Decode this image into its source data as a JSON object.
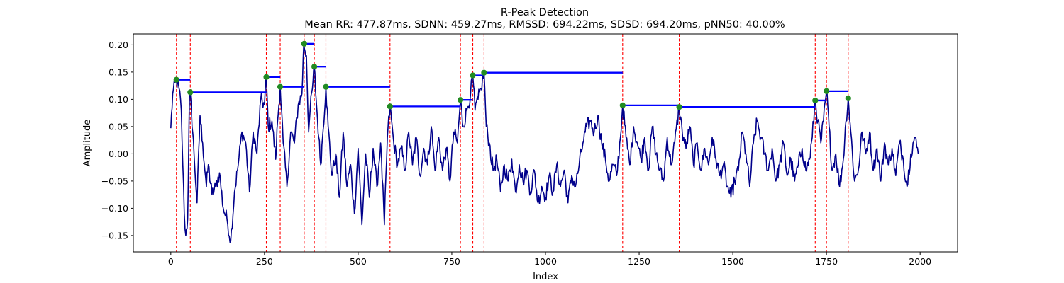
{
  "chart_data": {
    "type": "line",
    "title": "R-Peak Detection",
    "subtitle": "Mean RR: 477.87ms, SDNN: 459.27ms, RMSSD: 694.22ms, SDSD: 694.20ms, pNN50: 40.00%",
    "xlabel": "Index",
    "ylabel": "Amplitude",
    "xlim": [
      -100,
      2100
    ],
    "ylim": [
      -0.18,
      0.22
    ],
    "xticks": [
      0,
      250,
      500,
      750,
      1000,
      1250,
      1500,
      1750,
      2000
    ],
    "xtick_labels": [
      "0",
      "250",
      "500",
      "750",
      "1000",
      "1250",
      "1500",
      "1750",
      "2000"
    ],
    "yticks": [
      -0.15,
      -0.1,
      -0.05,
      0.0,
      0.05,
      0.1,
      0.15,
      0.2
    ],
    "ytick_labels": [
      "−0.15",
      "−0.10",
      "−0.05",
      "0.00",
      "0.05",
      "0.10",
      "0.15",
      "0.20"
    ],
    "grid": false,
    "signal_color": "#00008b",
    "peak_marker_color": "#228b22",
    "peak_line_color": "#ff0000",
    "rr_segment_color": "#0000ff",
    "signal_anchors": [
      [
        0,
        0.047
      ],
      [
        5,
        0.11
      ],
      [
        15,
        0.135
      ],
      [
        22,
        0.12
      ],
      [
        28,
        0.08
      ],
      [
        32,
        -0.02
      ],
      [
        36,
        -0.11
      ],
      [
        40,
        -0.15
      ],
      [
        45,
        -0.12
      ],
      [
        50,
        0.113
      ],
      [
        55,
        0.08
      ],
      [
        62,
        0.0
      ],
      [
        70,
        -0.09
      ],
      [
        78,
        0.07
      ],
      [
        85,
        0.02
      ],
      [
        95,
        -0.06
      ],
      [
        100,
        -0.02
      ],
      [
        110,
        -0.075
      ],
      [
        120,
        -0.06
      ],
      [
        130,
        -0.035
      ],
      [
        140,
        -0.1
      ],
      [
        150,
        -0.12
      ],
      [
        160,
        -0.16
      ],
      [
        170,
        -0.07
      ],
      [
        180,
        -0.02
      ],
      [
        190,
        0.04
      ],
      [
        200,
        0.02
      ],
      [
        210,
        -0.07
      ],
      [
        220,
        0.04
      ],
      [
        230,
        0.0
      ],
      [
        240,
        0.1
      ],
      [
        250,
        0.09
      ],
      [
        255,
        0.141
      ],
      [
        260,
        0.05
      ],
      [
        270,
        0.06
      ],
      [
        280,
        -0.01
      ],
      [
        285,
        0.06
      ],
      [
        292,
        0.123
      ],
      [
        300,
        0.02
      ],
      [
        310,
        -0.06
      ],
      [
        320,
        0.04
      ],
      [
        330,
        0.02
      ],
      [
        340,
        0.09
      ],
      [
        350,
        0.11
      ],
      [
        355,
        0.202
      ],
      [
        362,
        0.18
      ],
      [
        368,
        0.04
      ],
      [
        372,
        0.08
      ],
      [
        378,
        0.12
      ],
      [
        383,
        0.16
      ],
      [
        388,
        0.1
      ],
      [
        395,
        0.03
      ],
      [
        400,
        -0.02
      ],
      [
        405,
        0.03
      ],
      [
        414,
        0.123
      ],
      [
        420,
        0.05
      ],
      [
        430,
        -0.04
      ],
      [
        440,
        0.0
      ],
      [
        450,
        -0.08
      ],
      [
        460,
        0.04
      ],
      [
        470,
        -0.06
      ],
      [
        480,
        -0.02
      ],
      [
        490,
        -0.11
      ],
      [
        500,
        0.01
      ],
      [
        510,
        -0.13
      ],
      [
        520,
        0.0
      ],
      [
        530,
        -0.08
      ],
      [
        540,
        0.01
      ],
      [
        550,
        -0.06
      ],
      [
        560,
        0.02
      ],
      [
        570,
        -0.13
      ],
      [
        578,
        0.03
      ],
      [
        585,
        0.086
      ],
      [
        595,
        0.02
      ],
      [
        605,
        -0.02
      ],
      [
        615,
        0.01
      ],
      [
        625,
        -0.03
      ],
      [
        635,
        0.04
      ],
      [
        645,
        -0.02
      ],
      [
        655,
        0.03
      ],
      [
        665,
        -0.04
      ],
      [
        675,
        0.01
      ],
      [
        685,
        -0.02
      ],
      [
        695,
        0.05
      ],
      [
        705,
        -0.03
      ],
      [
        715,
        0.03
      ],
      [
        725,
        -0.03
      ],
      [
        735,
        0.01
      ],
      [
        745,
        -0.05
      ],
      [
        755,
        0.04
      ],
      [
        765,
        0.02
      ],
      [
        773,
        0.099
      ],
      [
        780,
        0.05
      ],
      [
        790,
        0.08
      ],
      [
        800,
        0.11
      ],
      [
        806,
        0.144
      ],
      [
        812,
        0.08
      ],
      [
        820,
        0.1
      ],
      [
        828,
        0.12
      ],
      [
        836,
        0.149
      ],
      [
        842,
        0.05
      ],
      [
        850,
        0.02
      ],
      [
        860,
        -0.03
      ],
      [
        870,
        -0.01
      ],
      [
        880,
        -0.07
      ],
      [
        890,
        -0.02
      ],
      [
        900,
        -0.05
      ],
      [
        910,
        -0.01
      ],
      [
        920,
        -0.07
      ],
      [
        930,
        -0.02
      ],
      [
        940,
        -0.05
      ],
      [
        950,
        -0.03
      ],
      [
        960,
        -0.07
      ],
      [
        970,
        -0.03
      ],
      [
        980,
        -0.09
      ],
      [
        990,
        -0.06
      ],
      [
        1000,
        -0.08
      ],
      [
        1010,
        -0.04
      ],
      [
        1020,
        -0.07
      ],
      [
        1030,
        -0.02
      ],
      [
        1040,
        -0.06
      ],
      [
        1050,
        -0.03
      ],
      [
        1060,
        -0.09
      ],
      [
        1070,
        -0.04
      ],
      [
        1080,
        -0.06
      ],
      [
        1090,
        -0.02
      ],
      [
        1100,
        0.02
      ],
      [
        1110,
        0.05
      ],
      [
        1120,
        0.06
      ],
      [
        1130,
        0.04
      ],
      [
        1140,
        0.07
      ],
      [
        1150,
        0.02
      ],
      [
        1160,
        -0.01
      ],
      [
        1170,
        -0.05
      ],
      [
        1180,
        -0.02
      ],
      [
        1190,
        -0.04
      ],
      [
        1200,
        0.03
      ],
      [
        1206,
        0.089
      ],
      [
        1215,
        0.03
      ],
      [
        1225,
        -0.02
      ],
      [
        1235,
        0.05
      ],
      [
        1245,
        0.02
      ],
      [
        1255,
        -0.01
      ],
      [
        1265,
        0.03
      ],
      [
        1275,
        -0.03
      ],
      [
        1285,
        0.05
      ],
      [
        1295,
        0.0
      ],
      [
        1305,
        -0.03
      ],
      [
        1315,
        -0.05
      ],
      [
        1325,
        0.03
      ],
      [
        1335,
        -0.02
      ],
      [
        1345,
        0.02
      ],
      [
        1357,
        0.086
      ],
      [
        1365,
        0.04
      ],
      [
        1375,
        0.01
      ],
      [
        1385,
        0.05
      ],
      [
        1395,
        -0.02
      ],
      [
        1405,
        0.02
      ],
      [
        1415,
        -0.03
      ],
      [
        1425,
        0.01
      ],
      [
        1435,
        -0.02
      ],
      [
        1445,
        0.03
      ],
      [
        1455,
        -0.01
      ],
      [
        1465,
        -0.04
      ],
      [
        1475,
        -0.02
      ],
      [
        1485,
        -0.06
      ],
      [
        1495,
        -0.08
      ],
      [
        1505,
        -0.05
      ],
      [
        1515,
        -0.03
      ],
      [
        1525,
        0.04
      ],
      [
        1535,
        0.0
      ],
      [
        1545,
        -0.06
      ],
      [
        1555,
        0.02
      ],
      [
        1565,
        0.06
      ],
      [
        1575,
        0.03
      ],
      [
        1585,
        0.0
      ],
      [
        1595,
        -0.03
      ],
      [
        1605,
        0.01
      ],
      [
        1615,
        -0.05
      ],
      [
        1625,
        -0.02
      ],
      [
        1635,
        0.02
      ],
      [
        1645,
        -0.04
      ],
      [
        1655,
        -0.01
      ],
      [
        1665,
        -0.05
      ],
      [
        1675,
        -0.02
      ],
      [
        1685,
        0.01
      ],
      [
        1695,
        -0.03
      ],
      [
        1705,
        -0.01
      ],
      [
        1712,
        0.03
      ],
      [
        1720,
        0.098
      ],
      [
        1727,
        0.06
      ],
      [
        1735,
        0.02
      ],
      [
        1742,
        0.06
      ],
      [
        1750,
        0.115
      ],
      [
        1757,
        0.05
      ],
      [
        1765,
        -0.03
      ],
      [
        1775,
        0.0
      ],
      [
        1785,
        -0.06
      ],
      [
        1795,
        -0.01
      ],
      [
        1802,
        0.06
      ],
      [
        1808,
        0.102
      ],
      [
        1815,
        0.04
      ],
      [
        1825,
        -0.05
      ],
      [
        1835,
        -0.03
      ],
      [
        1845,
        0.04
      ],
      [
        1855,
        0.0
      ],
      [
        1865,
        0.04
      ],
      [
        1875,
        -0.03
      ],
      [
        1885,
        0.01
      ],
      [
        1895,
        -0.05
      ],
      [
        1905,
        0.02
      ],
      [
        1915,
        -0.02
      ],
      [
        1925,
        0.01
      ],
      [
        1935,
        -0.04
      ],
      [
        1945,
        0.02
      ],
      [
        1955,
        -0.01
      ],
      [
        1965,
        -0.06
      ],
      [
        1975,
        0.0
      ],
      [
        1985,
        0.03
      ],
      [
        1995,
        0.0
      ]
    ],
    "peaks": [
      {
        "x": 15,
        "y": 0.136
      },
      {
        "x": 52,
        "y": 0.113
      },
      {
        "x": 255,
        "y": 0.141
      },
      {
        "x": 292,
        "y": 0.123
      },
      {
        "x": 356,
        "y": 0.202
      },
      {
        "x": 383,
        "y": 0.16
      },
      {
        "x": 414,
        "y": 0.123
      },
      {
        "x": 585,
        "y": 0.087
      },
      {
        "x": 773,
        "y": 0.099
      },
      {
        "x": 806,
        "y": 0.144
      },
      {
        "x": 836,
        "y": 0.149
      },
      {
        "x": 1206,
        "y": 0.089
      },
      {
        "x": 1357,
        "y": 0.086
      },
      {
        "x": 1720,
        "y": 0.098
      },
      {
        "x": 1750,
        "y": 0.115
      },
      {
        "x": 1808,
        "y": 0.102
      }
    ]
  }
}
